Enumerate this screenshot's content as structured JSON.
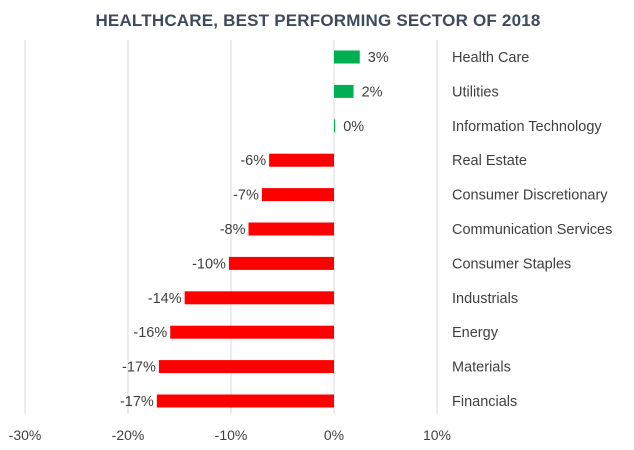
{
  "chart_data": {
    "type": "bar",
    "orientation": "horizontal",
    "title": "HEALTHCARE, BEST PERFORMING SECTOR OF 2018",
    "xlabel": "",
    "ylabel": "",
    "xlim": [
      -30,
      10
    ],
    "x_ticks": [
      -30,
      -20,
      -10,
      0,
      10
    ],
    "x_tick_labels": [
      "-30%",
      "-20%",
      "-10%",
      "0%",
      "10%"
    ],
    "grid": true,
    "legend": "none",
    "categories": [
      "Health Care",
      "Utilities",
      "Information Technology",
      "Real Estate",
      "Consumer Discretionary",
      "Communication Services",
      "Consumer Staples",
      "Industrials",
      "Energy",
      "Materials",
      "Financials"
    ],
    "values": [
      2.5,
      1.9,
      0.1,
      -6.3,
      -7.0,
      -8.3,
      -10.2,
      -14.5,
      -15.9,
      -17.0,
      -17.2
    ],
    "data_labels": [
      "3%",
      "2%",
      "0%",
      "-6%",
      "-7%",
      "-8%",
      "-10%",
      "-14%",
      "-16%",
      "-17%",
      "-17%"
    ],
    "colors": {
      "positive": "#00b050",
      "negative": "#ff0000"
    }
  }
}
